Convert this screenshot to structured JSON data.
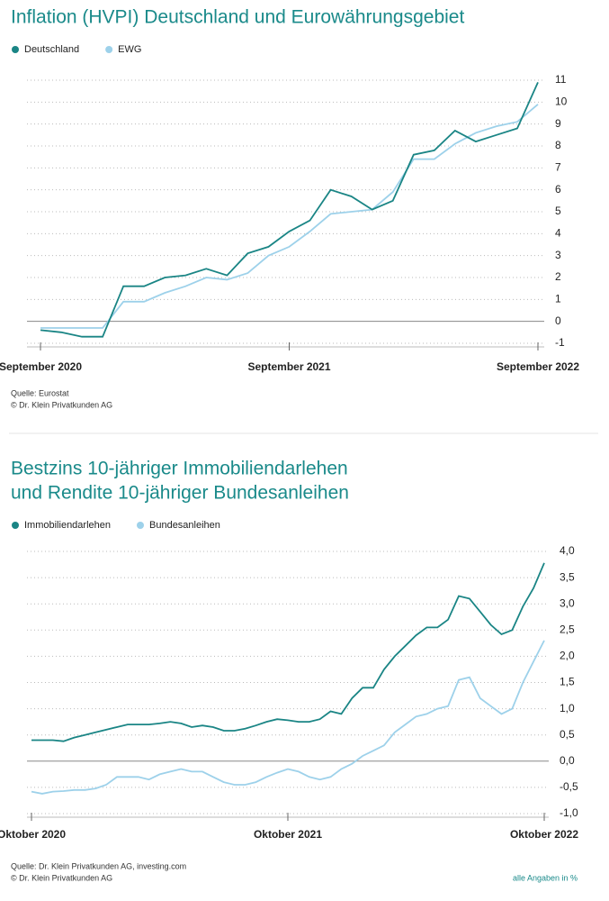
{
  "chart_data": [
    {
      "type": "line",
      "title": [
        "Inflation (HVPI) Deutschland und Eurowährungsgebiet"
      ],
      "categories": [
        "September 2020",
        null,
        null,
        null,
        null,
        null,
        null,
        null,
        null,
        null,
        null,
        null,
        "September 2021",
        null,
        null,
        null,
        null,
        null,
        null,
        null,
        null,
        null,
        null,
        null,
        "September 2022"
      ],
      "series": [
        {
          "name": "Deutschland",
          "color": "#1a8585",
          "values": [
            -0.4,
            -0.5,
            -0.7,
            -0.7,
            1.6,
            1.6,
            2.0,
            2.1,
            2.4,
            2.1,
            3.1,
            3.4,
            4.1,
            4.6,
            6.0,
            5.7,
            5.1,
            5.5,
            7.6,
            7.8,
            8.7,
            8.2,
            8.5,
            8.8,
            10.9
          ]
        },
        {
          "name": "EWG",
          "color": "#9dd1ea",
          "values": [
            -0.3,
            -0.3,
            -0.3,
            -0.3,
            0.9,
            0.9,
            1.3,
            1.6,
            2.0,
            1.9,
            2.2,
            3.0,
            3.4,
            4.1,
            4.9,
            5.0,
            5.1,
            5.9,
            7.4,
            7.4,
            8.1,
            8.6,
            8.9,
            9.1,
            9.9
          ]
        }
      ],
      "ylim": [
        -1,
        11
      ],
      "yticks": [
        -1,
        0,
        1,
        2,
        3,
        4,
        5,
        6,
        7,
        8,
        9,
        10,
        11
      ],
      "grid": true,
      "source": "Quelle: Eurostat",
      "copyright": "© Dr. Klein Privatkunden AG"
    },
    {
      "type": "line",
      "title": [
        "Bestzins 10-jähriger Immobiliendarlehen",
        "und Rendite 10-jähriger Bundesanleihen"
      ],
      "categories": [
        "Oktober 2020",
        null,
        null,
        null,
        null,
        null,
        null,
        null,
        null,
        null,
        null,
        null,
        null,
        null,
        null,
        null,
        null,
        null,
        null,
        null,
        null,
        null,
        null,
        null,
        "Oktober 2021",
        null,
        null,
        null,
        null,
        null,
        null,
        null,
        null,
        null,
        null,
        null,
        null,
        null,
        null,
        null,
        null,
        null,
        null,
        null,
        null,
        null,
        null,
        null,
        "Oktober 2022"
      ],
      "series": [
        {
          "name": "Immobiliendarlehen",
          "color": "#1a8585",
          "values": [
            0.4,
            0.4,
            0.4,
            0.38,
            0.45,
            0.5,
            0.55,
            0.6,
            0.65,
            0.7,
            0.7,
            0.7,
            0.72,
            0.75,
            0.72,
            0.65,
            0.68,
            0.65,
            0.58,
            0.58,
            0.62,
            0.68,
            0.75,
            0.8,
            0.78,
            0.75,
            0.75,
            0.8,
            0.95,
            0.9,
            1.2,
            1.4,
            1.4,
            1.75,
            2.0,
            2.2,
            2.4,
            2.55,
            2.55,
            2.7,
            3.15,
            3.1,
            2.85,
            2.6,
            2.42,
            2.5,
            2.95,
            3.3,
            3.78
          ]
        },
        {
          "name": "Bundesanleihen",
          "color": "#9dd1ea",
          "values": [
            -0.58,
            -0.62,
            -0.58,
            -0.57,
            -0.55,
            -0.55,
            -0.52,
            -0.45,
            -0.3,
            -0.3,
            -0.3,
            -0.35,
            -0.25,
            -0.2,
            -0.15,
            -0.2,
            -0.2,
            -0.3,
            -0.4,
            -0.45,
            -0.45,
            -0.4,
            -0.3,
            -0.22,
            -0.15,
            -0.2,
            -0.3,
            -0.35,
            -0.3,
            -0.15,
            -0.05,
            0.1,
            0.2,
            0.3,
            0.55,
            0.7,
            0.85,
            0.9,
            1.0,
            1.05,
            1.55,
            1.6,
            1.2,
            1.05,
            0.9,
            1.0,
            1.5,
            1.9,
            2.3
          ]
        }
      ],
      "ylim": [
        -1,
        4
      ],
      "yticks": [
        {
          "value": -1,
          "label": "-1,0"
        },
        {
          "value": -0.5,
          "label": "-0,5"
        },
        {
          "value": 0,
          "label": "0,0"
        },
        {
          "value": 0.5,
          "label": "0,5"
        },
        {
          "value": 1,
          "label": "1,0"
        },
        {
          "value": 1.5,
          "label": "1,5"
        },
        {
          "value": 2,
          "label": "2,0"
        },
        {
          "value": 2.5,
          "label": "2,5"
        },
        {
          "value": 3,
          "label": "3,0"
        },
        {
          "value": 3.5,
          "label": "3,5"
        },
        {
          "value": 4,
          "label": "4,0"
        }
      ],
      "grid": true,
      "source": "Quelle: Dr. Klein Privatkunden AG, investing.com",
      "copyright": "© Dr. Klein Privatkunden AG",
      "note": "alle Angaben in %"
    }
  ]
}
